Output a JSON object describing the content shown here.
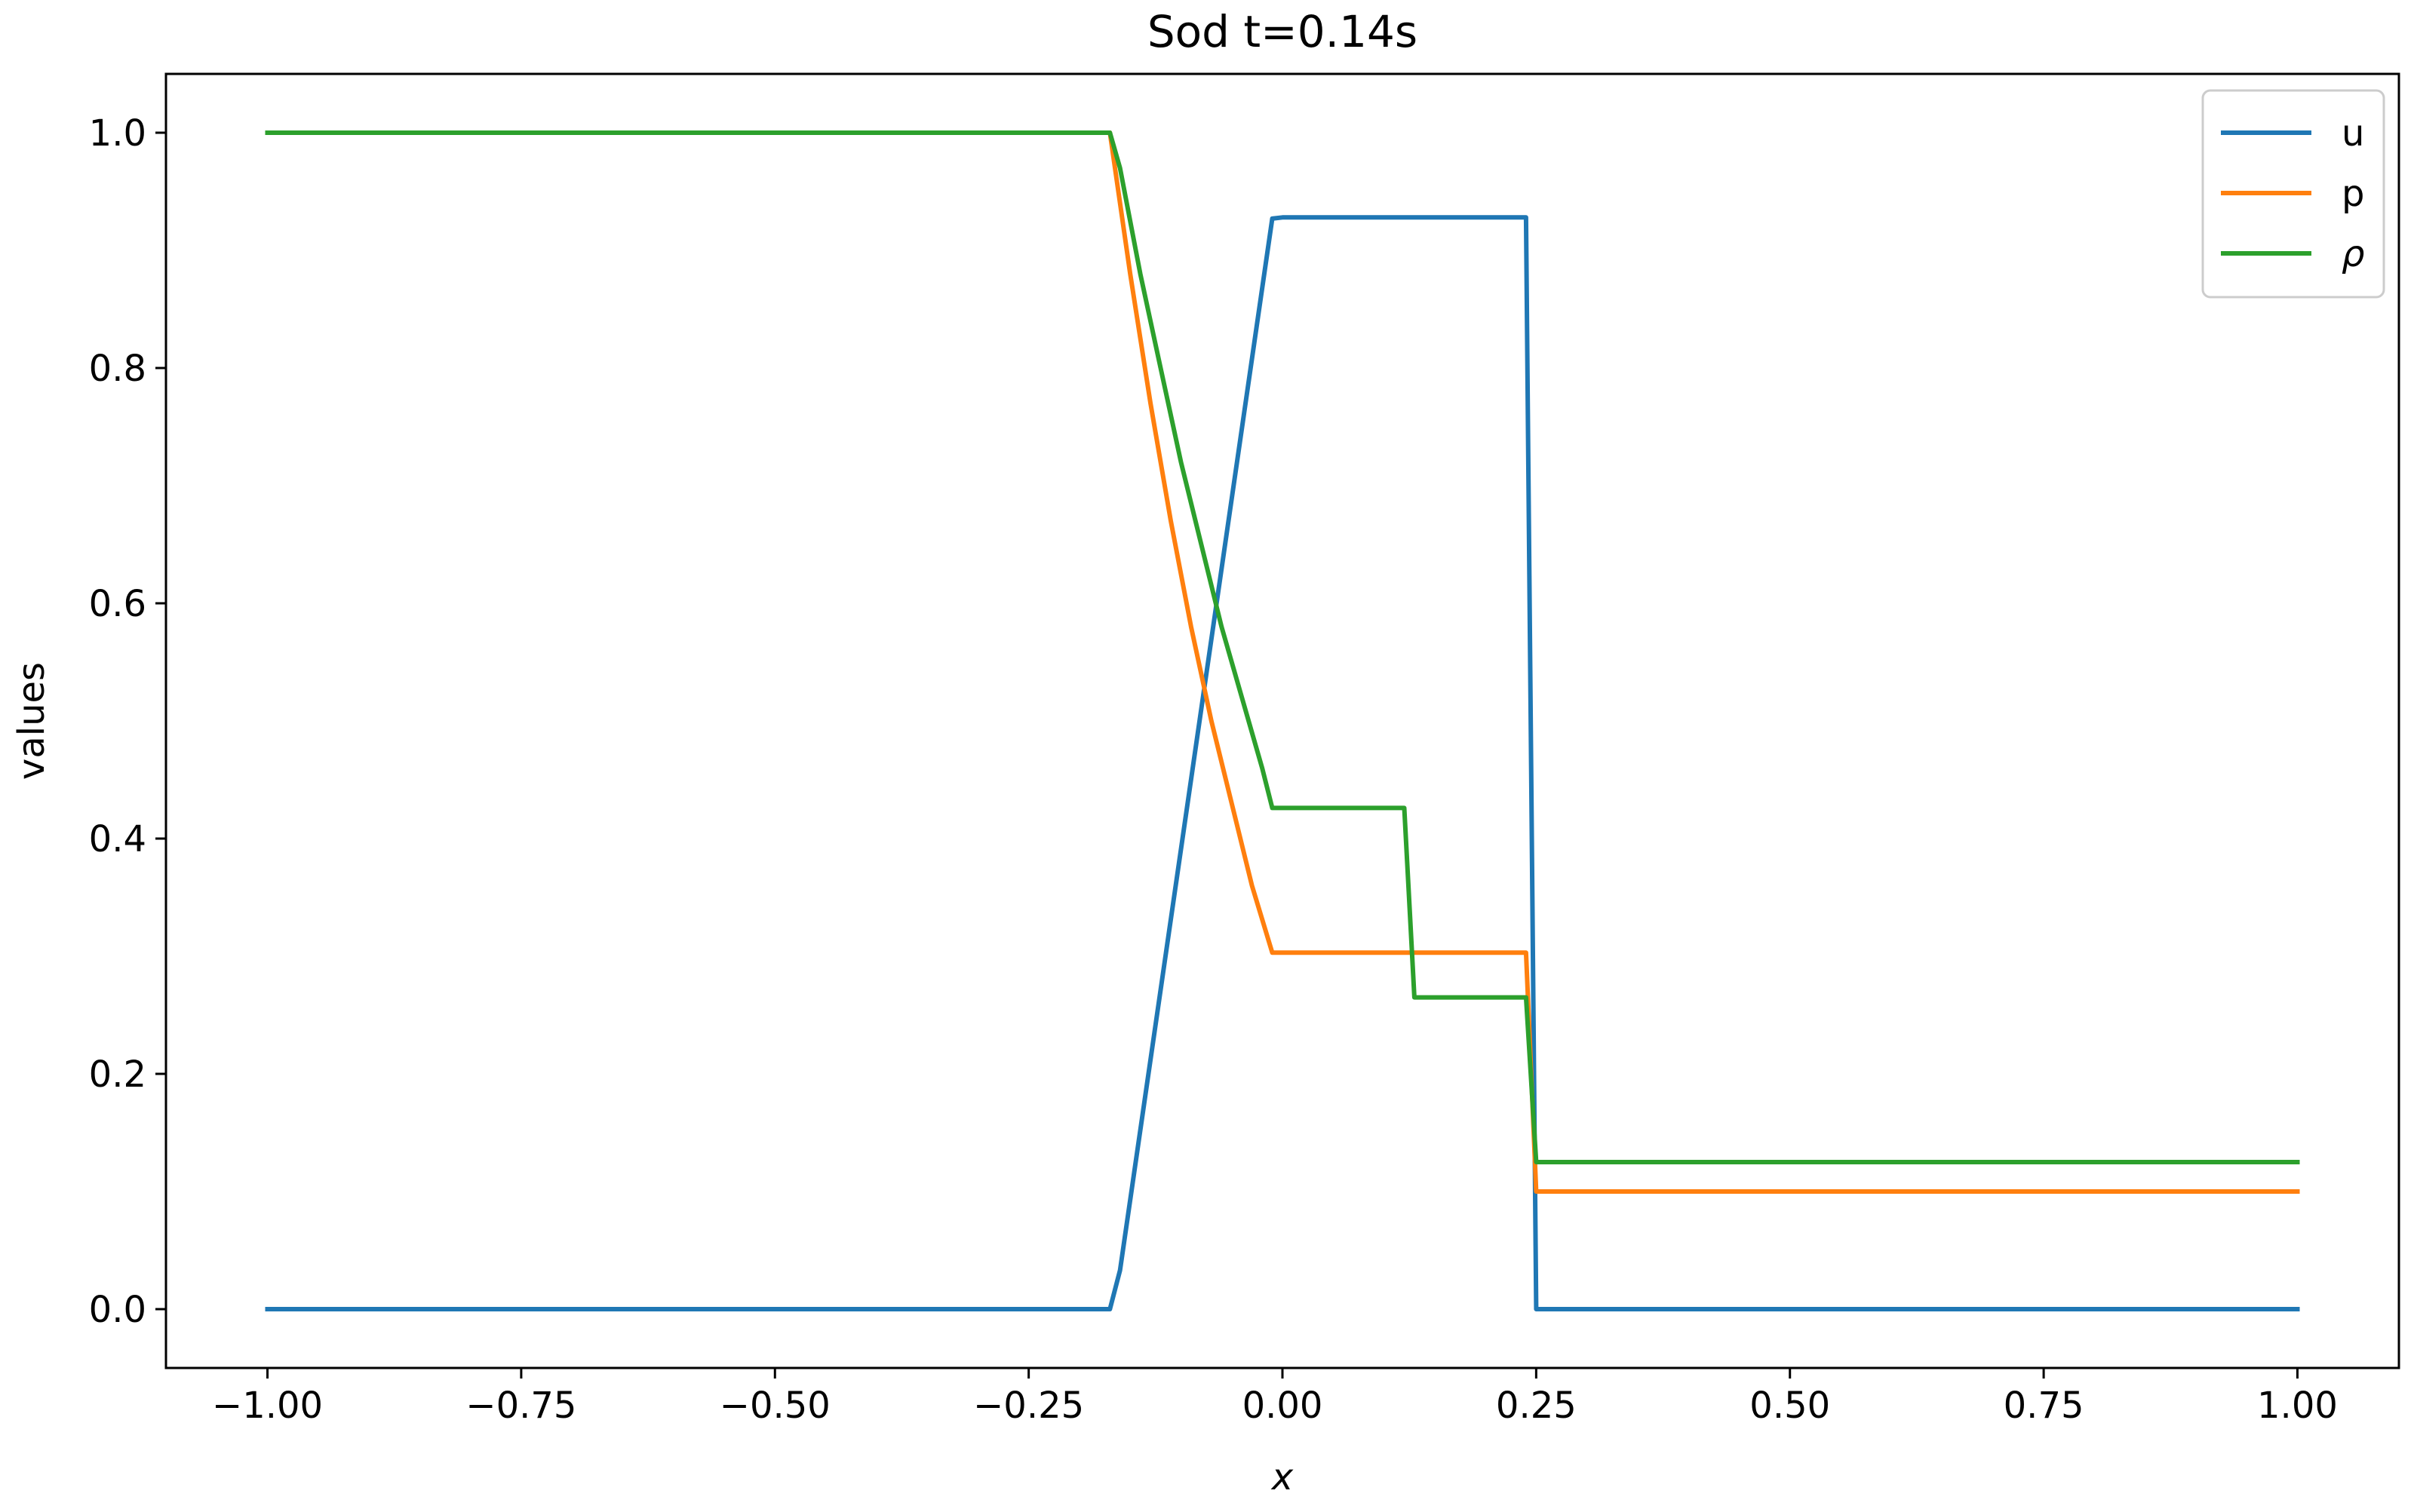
{
  "chart_data": {
    "type": "line",
    "title": "Sod t=0.14s",
    "xlabel": "x",
    "ylabel": "values",
    "xlim": [
      -1.1,
      1.1
    ],
    "ylim": [
      -0.05,
      1.05
    ],
    "xticks": [
      -1.0,
      -0.75,
      -0.5,
      -0.25,
      0.0,
      0.25,
      0.5,
      0.75,
      1.0
    ],
    "xtick_labels": [
      "−1.00",
      "−0.75",
      "−0.50",
      "−0.25",
      "0.00",
      "0.25",
      "0.50",
      "0.75",
      "1.00"
    ],
    "yticks": [
      0.0,
      0.2,
      0.4,
      0.6,
      0.8,
      1.0
    ],
    "ytick_labels": [
      "0.0",
      "0.2",
      "0.4",
      "0.6",
      "0.8",
      "1.0"
    ],
    "grid": false,
    "legend_position": "upper right",
    "series": [
      {
        "name": "u",
        "color": "#1f77b4",
        "x": [
          -1.0,
          -0.17,
          -0.16,
          -0.01,
          0.0,
          0.24,
          0.25,
          1.0
        ],
        "y": [
          0.0,
          0.0,
          0.033,
          0.927,
          0.928,
          0.928,
          0.0,
          0.0
        ]
      },
      {
        "name": "p",
        "color": "#ff7f0e",
        "x": [
          -1.0,
          -0.17,
          -0.15,
          -0.13,
          -0.11,
          -0.09,
          -0.07,
          -0.05,
          -0.03,
          -0.01,
          0.24,
          0.25,
          1.0
        ],
        "y": [
          1.0,
          1.0,
          0.88,
          0.77,
          0.67,
          0.58,
          0.5,
          0.43,
          0.36,
          0.303,
          0.303,
          0.1,
          0.1
        ]
      },
      {
        "name": "ρ",
        "color": "#2ca02c",
        "x": [
          -1.0,
          -0.17,
          -0.16,
          -0.14,
          -0.12,
          -0.1,
          -0.08,
          -0.06,
          -0.04,
          -0.02,
          -0.01,
          0.12,
          0.13,
          0.24,
          0.25,
          1.0
        ],
        "y": [
          1.0,
          1.0,
          0.97,
          0.88,
          0.8,
          0.72,
          0.65,
          0.58,
          0.52,
          0.46,
          0.426,
          0.426,
          0.265,
          0.265,
          0.125,
          0.125
        ]
      }
    ]
  }
}
